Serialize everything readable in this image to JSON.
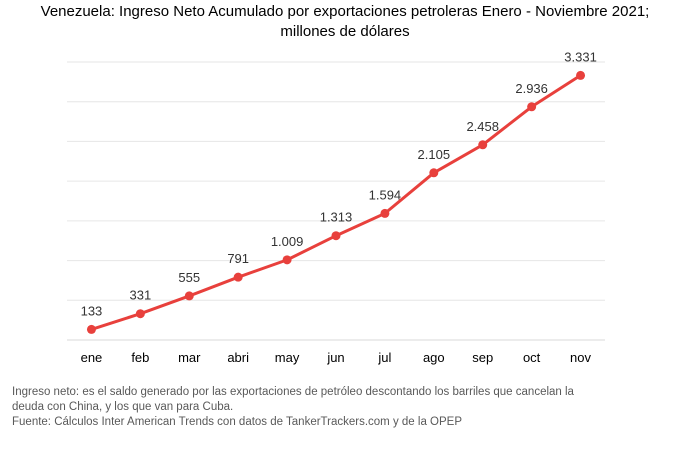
{
  "chart_data": {
    "type": "line",
    "title_lines": [
      "Venezuela: Ingreso Neto Acumulado por exportaciones petroleras Enero - Noviembre 2021;",
      "millones de dólares"
    ],
    "categories": [
      "ene",
      "feb",
      "mar",
      "abri",
      "may",
      "jun",
      "jul",
      "ago",
      "sep",
      "oct",
      "nov"
    ],
    "series": [
      {
        "values": [
          133,
          331,
          555,
          791,
          1009,
          1313,
          1594,
          2105,
          2458,
          2936,
          3331
        ],
        "labels": [
          "133",
          "331",
          "555",
          "791",
          "1.009",
          "1.313",
          "1.594",
          "2.105",
          "2.458",
          "2.936",
          "3.331"
        ],
        "color": "#e8403c"
      }
    ],
    "ylim": [
      0,
      3500
    ],
    "grid": true,
    "gridColor": "#e6e6e6"
  },
  "notes": {
    "line1": "Ingreso neto: es el saldo generado por las exportaciones de petróleo descontando los barriles que cancelan la",
    "line2": "deuda con China, y los que van para Cuba.",
    "source": "Fuente:  Cálculos Inter American Trends con datos de TankerTrackers.com y de la OPEP"
  }
}
